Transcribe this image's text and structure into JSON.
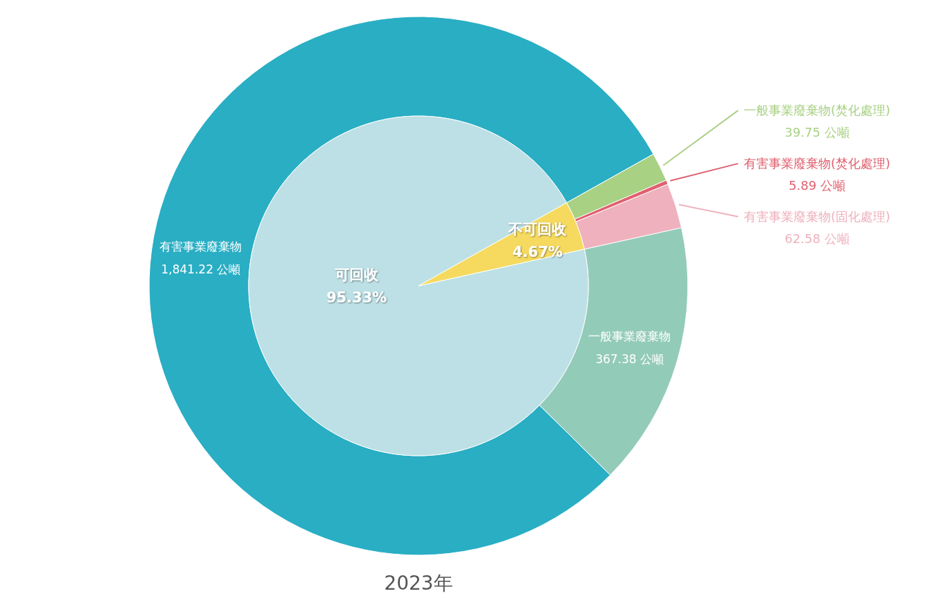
{
  "chart_data": [
    {
      "type": "donut",
      "title": "2023年",
      "categories": [
        "有害事業廢棄物",
        "一般事業廢棄物",
        "有害事業廢棄物(固化處理)",
        "有害事業廢棄物(焚化處理)",
        "一般事業廢棄物(焚化處理)"
      ],
      "values": [
        1841.22,
        367.38,
        62.58,
        5.89,
        39.75
      ],
      "colors": [
        "#29aec4",
        "#93cbb9",
        "#eeb1bd",
        "#e0606f",
        "#a8d184"
      ],
      "value_labels": [
        "1,841.22 公噸",
        "367.38 公噸",
        "62.58 公噸",
        "5.89 公噸",
        "39.75 公噸"
      ]
    },
    {
      "type": "pie",
      "categories": [
        "可回收",
        "不可回收"
      ],
      "values": [
        95.33,
        4.67
      ],
      "colors": [
        "#bce0e5",
        "#f5da5f"
      ],
      "value_labels": [
        "95.33%",
        "4.67%"
      ]
    }
  ]
}
